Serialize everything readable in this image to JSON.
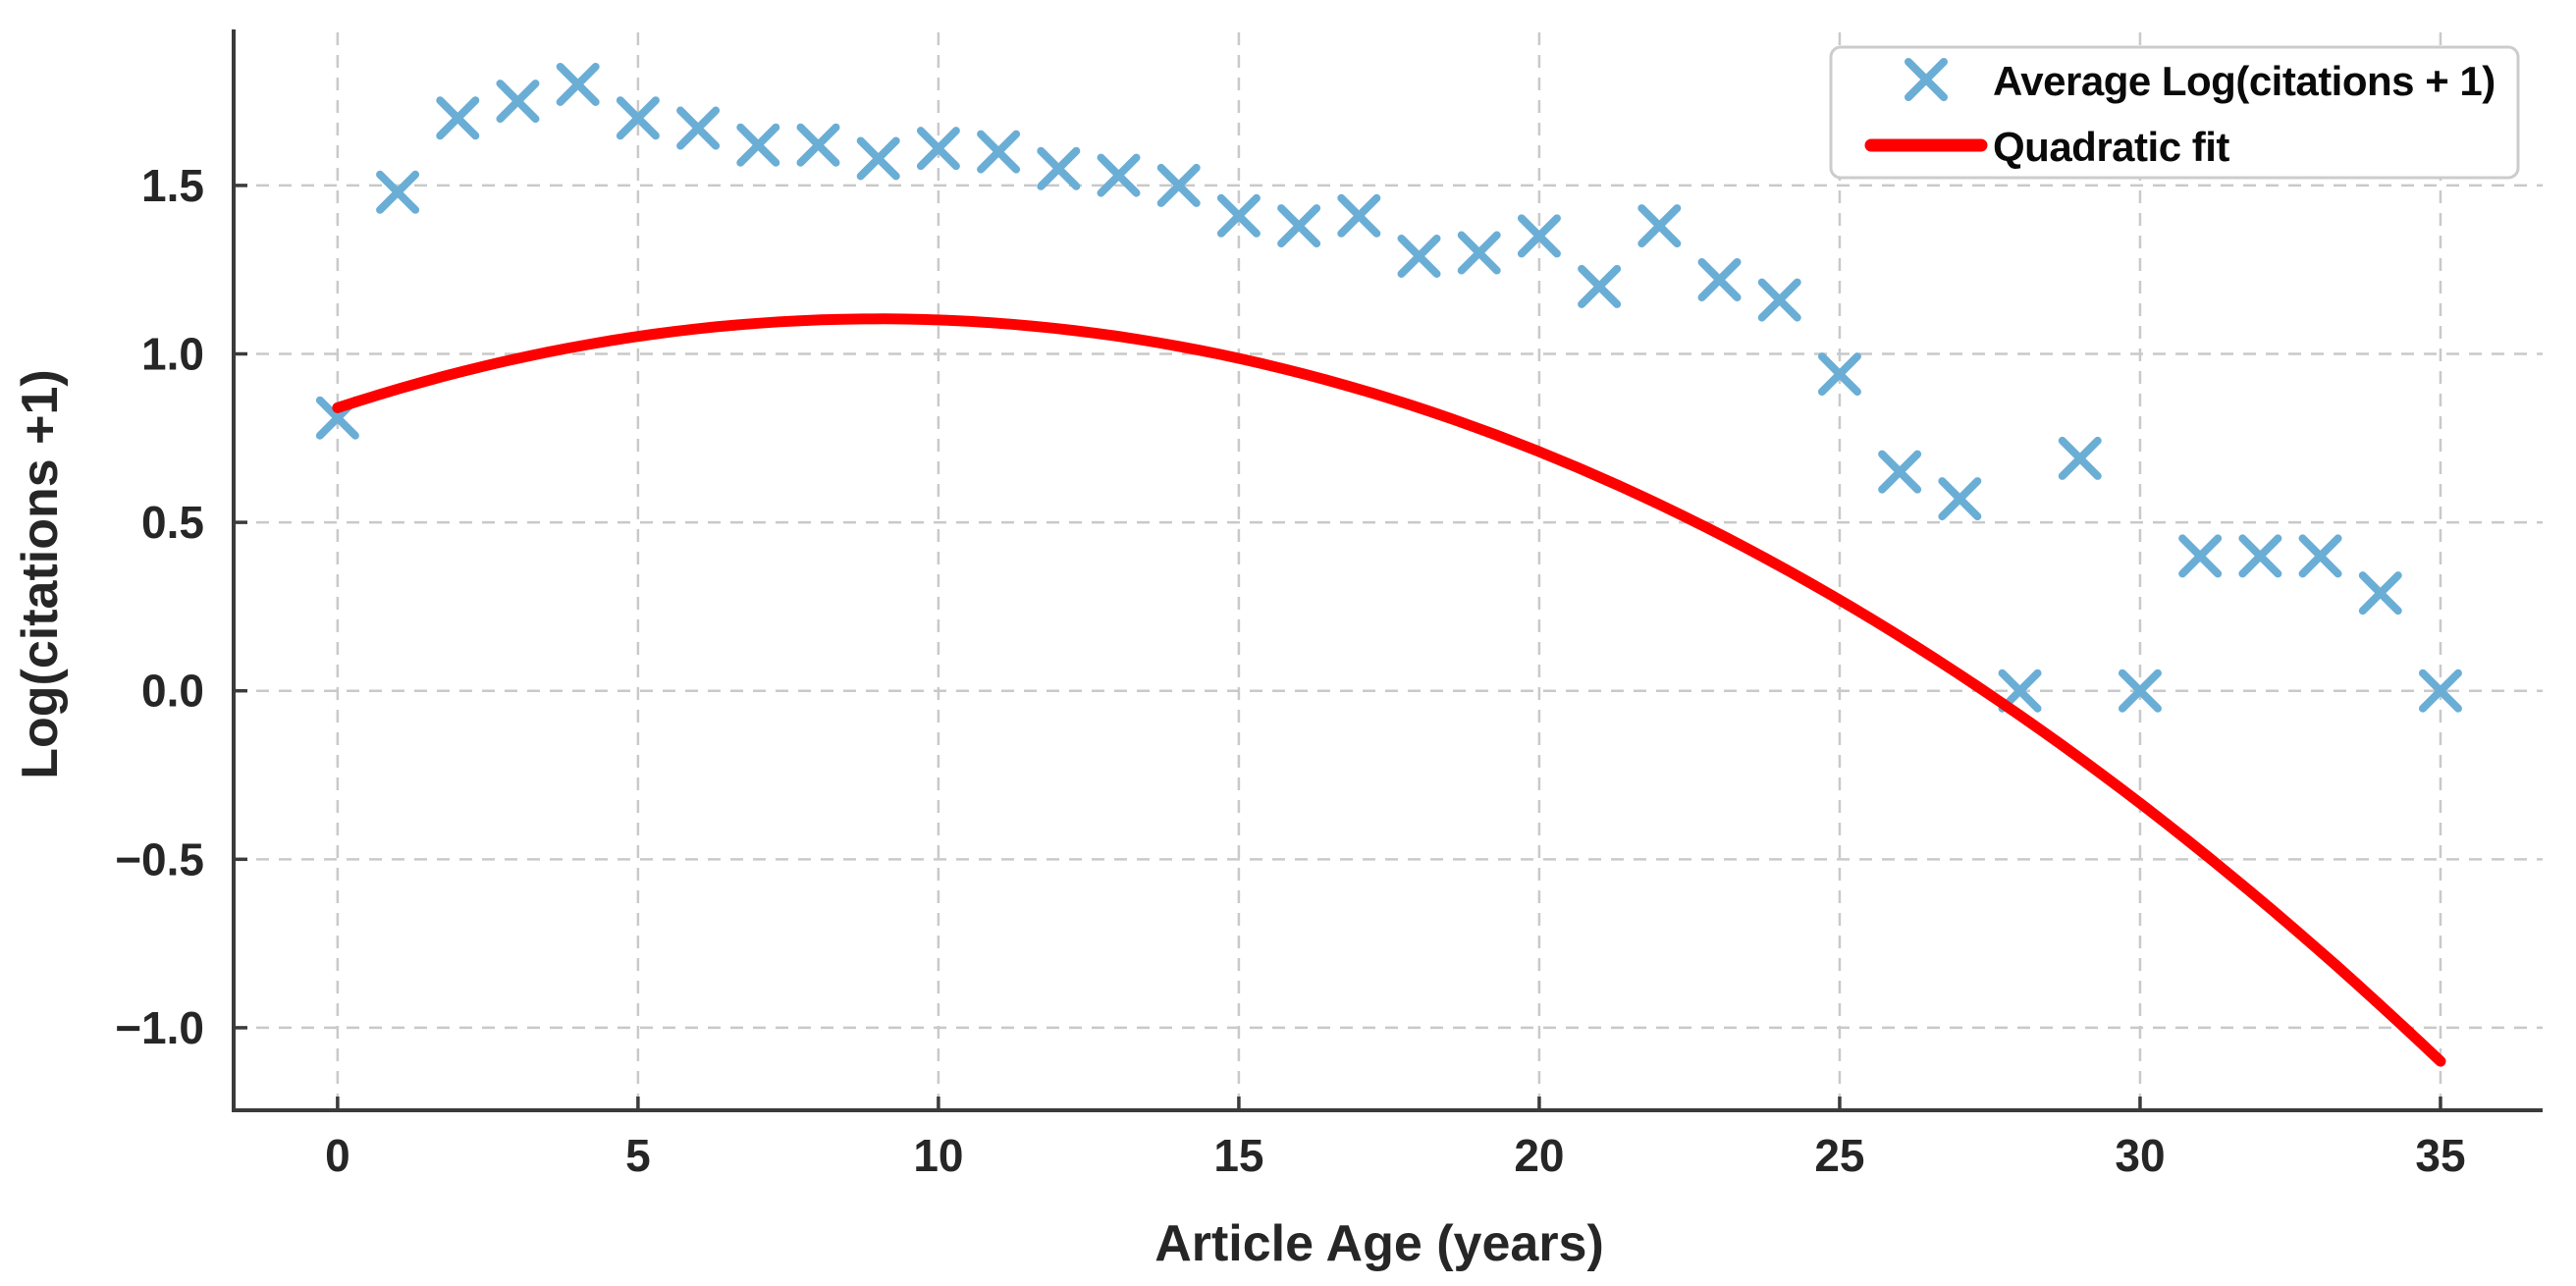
{
  "chart_data": {
    "type": "scatter",
    "title": "",
    "xlabel": "Article Age (years)",
    "ylabel": "Log(citations +1)",
    "xlim": [
      -1.73,
      36.7
    ],
    "ylim": [
      -1.245,
      1.963
    ],
    "xticks": [
      0,
      5,
      10,
      15,
      20,
      25,
      30,
      35
    ],
    "x_tick_labels": [
      "0",
      "5",
      "10",
      "15",
      "20",
      "25",
      "30",
      "35"
    ],
    "yticks": [
      -1.0,
      -0.5,
      0.0,
      0.5,
      1.0,
      1.5
    ],
    "y_tick_labels": [
      "−1.0",
      "−0.5",
      "0.0",
      "0.5",
      "1.0",
      "1.5"
    ],
    "grid": true,
    "legend_position": "upper right",
    "series": [
      {
        "name": "Average Log(citations + 1)",
        "type": "scatter",
        "marker": "x",
        "color": "#6aaed6",
        "x": [
          0,
          1,
          2,
          3,
          4,
          5,
          6,
          7,
          8,
          9,
          10,
          11,
          12,
          13,
          14,
          15,
          16,
          17,
          18,
          19,
          20,
          21,
          22,
          23,
          24,
          25,
          26,
          27,
          28,
          29,
          30,
          31,
          32,
          33,
          34,
          35
        ],
        "y": [
          0.81,
          1.48,
          1.7,
          1.75,
          1.8,
          1.7,
          1.67,
          1.62,
          1.62,
          1.58,
          1.61,
          1.6,
          1.55,
          1.53,
          1.5,
          1.41,
          1.38,
          1.41,
          1.29,
          1.3,
          1.35,
          1.2,
          1.38,
          1.22,
          1.16,
          0.94,
          0.65,
          0.57,
          0.0,
          0.69,
          0.0,
          0.4,
          0.4,
          0.4,
          0.29,
          0.0
        ]
      },
      {
        "name": "Quadratic fit",
        "type": "line",
        "color": "#ff0000",
        "x_range": [
          0,
          35
        ],
        "quadratic_coefficients": {
          "a": 0.84,
          "b": 0.05868,
          "c": -0.00326
        },
        "key_points": {
          "start": [
            0,
            0.84
          ],
          "vertex": [
            9,
            1.1
          ],
          "end": [
            35,
            -1.1
          ]
        }
      }
    ],
    "colors": {
      "marker": "#6aaed6",
      "fit_line": "#ff0000",
      "grid": "#c9c9c9",
      "spine": "#3b3b3b",
      "text": "#262626",
      "legend_border": "#cccccc",
      "background": "#ffffff"
    }
  }
}
